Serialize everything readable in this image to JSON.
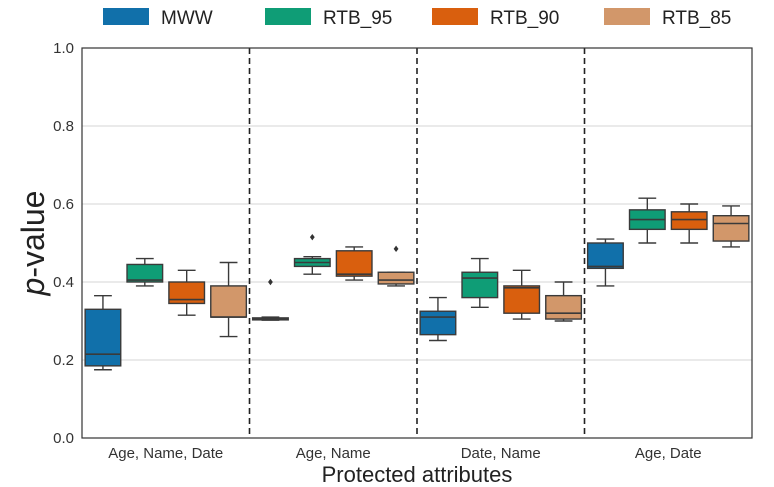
{
  "chart_data": {
    "type": "box",
    "xlabel": "Protected attributes",
    "ylabel_italic": "p",
    "ylabel_rest": "-value",
    "ylim": [
      0.0,
      1.0
    ],
    "yticks": [
      "0.0",
      "0.2",
      "0.4",
      "0.6",
      "0.8",
      "1.0"
    ],
    "grid": "horizontal",
    "legend_position": "top",
    "categories": [
      "Age, Name, Date",
      "Age, Name",
      "Date, Name",
      "Age, Date"
    ],
    "series": [
      {
        "name": "MWW",
        "color": "#1170aa",
        "boxes": [
          {
            "whislo": 0.175,
            "q1": 0.185,
            "med": 0.215,
            "q3": 0.33,
            "whishi": 0.365,
            "fliers": []
          },
          {
            "whislo": 0.302,
            "q1": 0.304,
            "med": 0.306,
            "q3": 0.308,
            "whishi": 0.31,
            "fliers": [
              0.4
            ]
          },
          {
            "whislo": 0.25,
            "q1": 0.265,
            "med": 0.31,
            "q3": 0.325,
            "whishi": 0.36,
            "fliers": []
          },
          {
            "whislo": 0.39,
            "q1": 0.435,
            "med": 0.44,
            "q3": 0.5,
            "whishi": 0.51,
            "fliers": []
          }
        ]
      },
      {
        "name": "RTB_95",
        "color": "#0f9d76",
        "boxes": [
          {
            "whislo": 0.39,
            "q1": 0.4,
            "med": 0.405,
            "q3": 0.445,
            "whishi": 0.46,
            "fliers": []
          },
          {
            "whislo": 0.42,
            "q1": 0.44,
            "med": 0.45,
            "q3": 0.46,
            "whishi": 0.465,
            "fliers": [
              0.515
            ]
          },
          {
            "whislo": 0.335,
            "q1": 0.36,
            "med": 0.41,
            "q3": 0.425,
            "whishi": 0.46,
            "fliers": []
          },
          {
            "whislo": 0.5,
            "q1": 0.535,
            "med": 0.56,
            "q3": 0.585,
            "whishi": 0.615,
            "fliers": []
          }
        ]
      },
      {
        "name": "RTB_90",
        "color": "#d95f0e",
        "boxes": [
          {
            "whislo": 0.315,
            "q1": 0.345,
            "med": 0.355,
            "q3": 0.4,
            "whishi": 0.43,
            "fliers": []
          },
          {
            "whislo": 0.405,
            "q1": 0.415,
            "med": 0.42,
            "q3": 0.48,
            "whishi": 0.49,
            "fliers": []
          },
          {
            "whislo": 0.305,
            "q1": 0.32,
            "med": 0.385,
            "q3": 0.39,
            "whishi": 0.43,
            "fliers": []
          },
          {
            "whislo": 0.5,
            "q1": 0.535,
            "med": 0.56,
            "q3": 0.58,
            "whishi": 0.6,
            "fliers": []
          }
        ]
      },
      {
        "name": "RTB_85",
        "color": "#d2976a",
        "boxes": [
          {
            "whislo": 0.26,
            "q1": 0.31,
            "med": 0.31,
            "q3": 0.39,
            "whishi": 0.45,
            "fliers": []
          },
          {
            "whislo": 0.39,
            "q1": 0.395,
            "med": 0.405,
            "q3": 0.425,
            "whishi": 0.425,
            "fliers": [
              0.485
            ]
          },
          {
            "whislo": 0.3,
            "q1": 0.305,
            "med": 0.32,
            "q3": 0.365,
            "whishi": 0.4,
            "fliers": []
          },
          {
            "whislo": 0.49,
            "q1": 0.505,
            "med": 0.55,
            "q3": 0.57,
            "whishi": 0.595,
            "fliers": []
          }
        ]
      }
    ]
  }
}
